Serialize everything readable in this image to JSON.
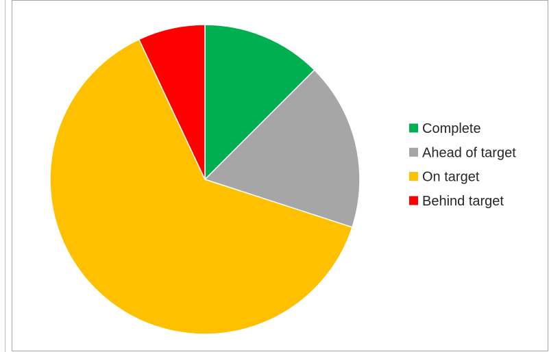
{
  "chart_data": {
    "type": "pie",
    "title": "",
    "categories": [
      "Complete",
      "Ahead of target",
      "On target",
      "Behind target"
    ],
    "values": [
      12.5,
      17.5,
      63,
      7
    ],
    "colors": [
      "#00b050",
      "#a6a6a6",
      "#ffc000",
      "#ff0000"
    ],
    "legend_position": "right",
    "start_angle_deg": 0,
    "direction": "clockwise"
  }
}
